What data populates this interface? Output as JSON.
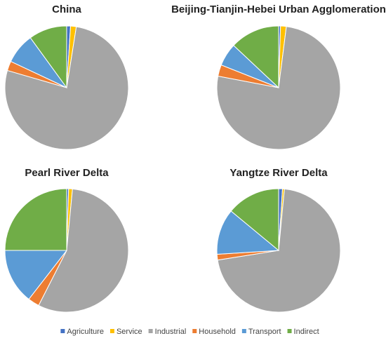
{
  "chart_data": [
    {
      "type": "pie",
      "title": "China",
      "categories": [
        "Agriculture",
        "Service",
        "Industrial",
        "Household",
        "Transport",
        "Indirect"
      ],
      "values": [
        1,
        1.5,
        77,
        2.5,
        8,
        10
      ],
      "colors": [
        "#4472c4",
        "#ffc000",
        "#a5a5a5",
        "#ed7d31",
        "#5b9bd5",
        "#70ad47"
      ]
    },
    {
      "type": "pie",
      "title": "Beijing-Tianjin-Hebei Urban Agglomeration",
      "categories": [
        "Agriculture",
        "Service",
        "Industrial",
        "Household",
        "Transport",
        "Indirect"
      ],
      "values": [
        0.5,
        1.5,
        76,
        3,
        6,
        13
      ],
      "colors": [
        "#4472c4",
        "#ffc000",
        "#a5a5a5",
        "#ed7d31",
        "#5b9bd5",
        "#70ad47"
      ]
    },
    {
      "type": "pie",
      "title": "Pearl River Delta",
      "categories": [
        "Agriculture",
        "Service",
        "Industrial",
        "Household",
        "Transport",
        "Indirect"
      ],
      "values": [
        0.5,
        1,
        56,
        3,
        14.5,
        25
      ],
      "colors": [
        "#4472c4",
        "#ffc000",
        "#a5a5a5",
        "#ed7d31",
        "#5b9bd5",
        "#70ad47"
      ]
    },
    {
      "type": "pie",
      "title": "Yangtze River Delta",
      "categories": [
        "Agriculture",
        "Service",
        "Industrial",
        "Household",
        "Transport",
        "Indirect"
      ],
      "values": [
        1,
        0.5,
        71,
        1.5,
        12,
        14
      ],
      "colors": [
        "#4472c4",
        "#ffc000",
        "#a5a5a5",
        "#ed7d31",
        "#5b9bd5",
        "#70ad47"
      ]
    }
  ]
}
